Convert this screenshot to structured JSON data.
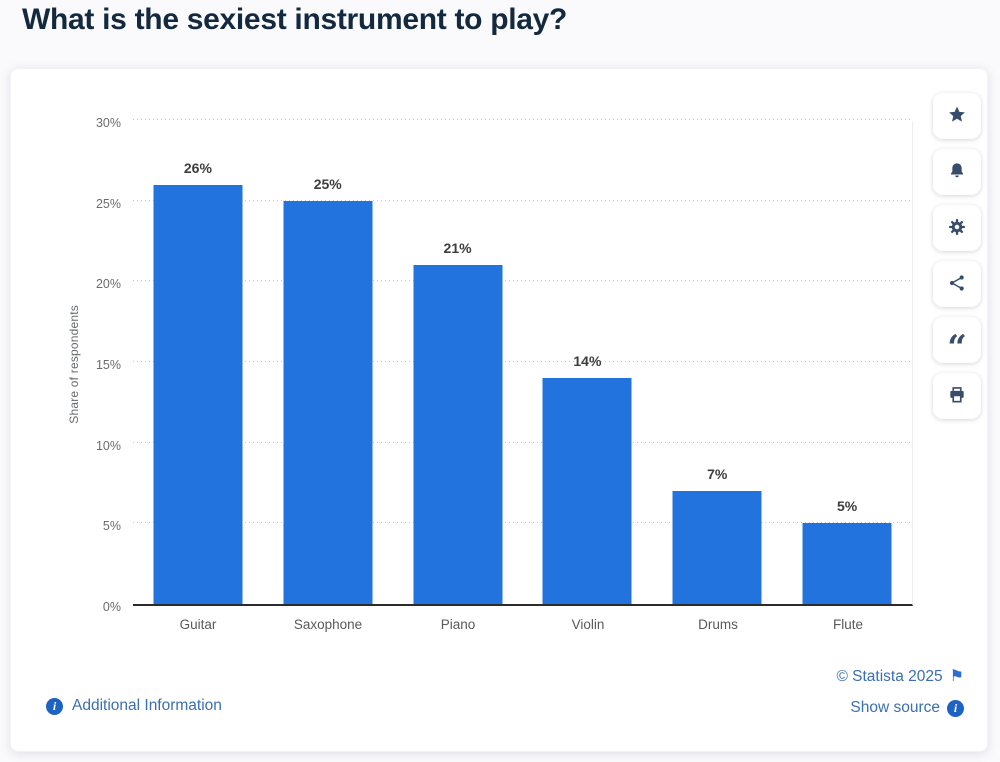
{
  "page": {
    "title": "What is the sexiest instrument to play?"
  },
  "chart_data": {
    "type": "bar",
    "title": "What is the sexiest instrument to play?",
    "categories": [
      "Guitar",
      "Saxophone",
      "Piano",
      "Violin",
      "Drums",
      "Flute"
    ],
    "values": [
      26,
      25,
      21,
      14,
      7,
      5
    ],
    "value_labels": [
      "26%",
      "25%",
      "21%",
      "14%",
      "7%",
      "5%"
    ],
    "xlabel": "",
    "ylabel": "Share of respondents",
    "ylim": [
      0,
      30
    ],
    "ytick_step": 5,
    "ytick_labels": [
      "0%",
      "5%",
      "10%",
      "15%",
      "20%",
      "25%",
      "30%"
    ],
    "grid": "horizontal-dotted",
    "legend": "none",
    "bar_color": "#2273DE"
  },
  "toolbar": {
    "buttons": [
      {
        "name": "favorite",
        "icon": "star-icon"
      },
      {
        "name": "alert",
        "icon": "bell-icon"
      },
      {
        "name": "settings",
        "icon": "gear-icon"
      },
      {
        "name": "share",
        "icon": "share-icon"
      },
      {
        "name": "cite",
        "icon": "quote-icon"
      },
      {
        "name": "print",
        "icon": "printer-icon"
      }
    ]
  },
  "footer": {
    "additional_information": "Additional Information",
    "copyright": "© Statista 2025",
    "show_source": "Show source"
  },
  "colors": {
    "bar": "#2273DE",
    "title": "#13293F",
    "link": "#3A6FB2",
    "toolbar_icon": "#384D6B",
    "info_badge": "#1D63C2",
    "flag": "#2D6FD1",
    "axis_line": "#2B2B2B",
    "gridline": "#C7C7C9"
  }
}
